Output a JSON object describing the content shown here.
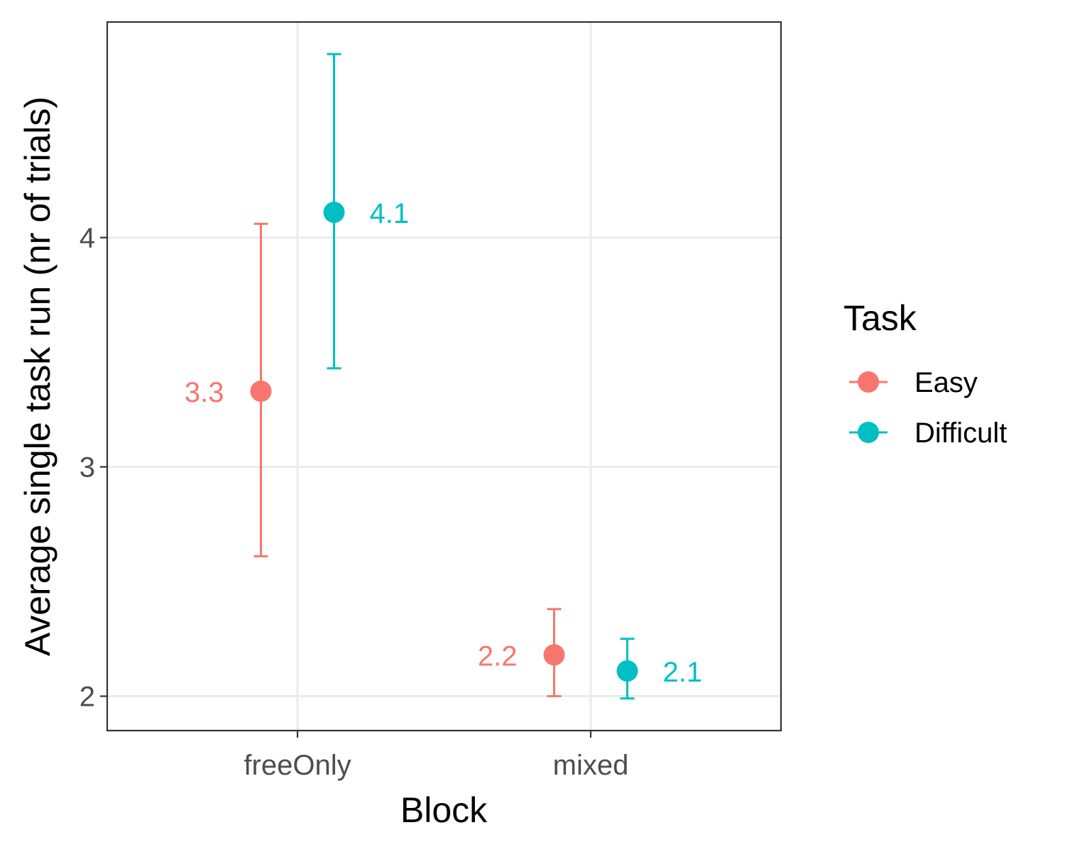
{
  "chart_data": {
    "type": "scatter",
    "xlabel": "Block",
    "ylabel": "Average single task run (nr of trials)",
    "categories": [
      "freeOnly",
      "mixed"
    ],
    "y_ticks": [
      2,
      3,
      4
    ],
    "y_tick_labels": [
      "2",
      "3",
      "4"
    ],
    "ylim": [
      1.85,
      4.94
    ],
    "grid": true,
    "legend": {
      "title": "Task",
      "placement": "right"
    },
    "series": [
      {
        "name": "Easy",
        "color": "#F8766D",
        "values": [
          3.33,
          2.18
        ],
        "error_low": [
          2.61,
          2.0
        ],
        "error_high": [
          4.06,
          2.38
        ],
        "labels": [
          "3.3",
          "2.2"
        ]
      },
      {
        "name": "Difficult",
        "color": "#00BFC4",
        "values": [
          4.11,
          2.11
        ],
        "error_low": [
          3.43,
          1.99
        ],
        "error_high": [
          4.8,
          2.25
        ],
        "labels": [
          "4.1",
          "2.1"
        ]
      }
    ]
  }
}
